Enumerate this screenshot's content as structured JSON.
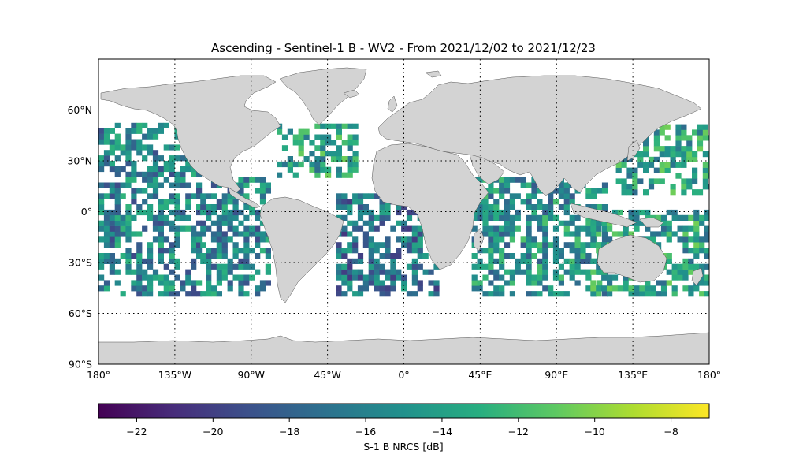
{
  "title": "Ascending - Sentinel-1 B - WV2 - From 2021/12/02 to 2021/12/23",
  "colorbar": {
    "label": "S-1 B NRCS [dB]",
    "min": -23,
    "max": -7,
    "ticks": [
      -22,
      -20,
      -18,
      -16,
      -14,
      -12,
      -10,
      -8
    ],
    "tick_labels": [
      "−22",
      "−20",
      "−18",
      "−16",
      "−14",
      "−12",
      "−10",
      "−8"
    ],
    "colormap": "viridis"
  },
  "map": {
    "projection": "PlateCarree",
    "lon_range": [
      -180,
      180
    ],
    "lat_range": [
      -90,
      90
    ],
    "land_color": "#d3d3d3",
    "ocean_color": "#ffffff",
    "gridlines": "dotted",
    "lon_ticks": [
      -180,
      -135,
      -90,
      -45,
      0,
      45,
      90,
      135,
      180
    ],
    "lon_tick_labels": [
      "180°",
      "135°W",
      "90°W",
      "45°W",
      "0°",
      "45°E",
      "90°E",
      "135°E",
      "180°"
    ],
    "lat_ticks": [
      60,
      30,
      0,
      -30,
      -60,
      -90
    ],
    "lat_tick_labels": [
      "60°N",
      "30°N",
      "0°",
      "30°S",
      "60°S",
      "90°S"
    ]
  },
  "chart_data": {
    "type": "heatmap",
    "title": "Ascending - Sentinel-1 B - WV2 - From 2021/12/02 to 2021/12/23",
    "xlabel": "",
    "ylabel": "",
    "xlim": [
      -180,
      180
    ],
    "ylim": [
      -90,
      90
    ],
    "value_label": "S-1 B NRCS [dB]",
    "value_range": [
      -23,
      -7
    ],
    "data_lat_extent": [
      -50,
      50
    ],
    "regions": [
      {
        "lon": [
          -180,
          -120
        ],
        "lat": [
          -50,
          50
        ],
        "mean_db": -16
      },
      {
        "lon": [
          -120,
          -80
        ],
        "lat": [
          -50,
          20
        ],
        "mean_db": -16
      },
      {
        "lon": [
          -75,
          -30
        ],
        "lat": [
          20,
          50
        ],
        "mean_db": -14
      },
      {
        "lon": [
          -40,
          20
        ],
        "lat": [
          -50,
          10
        ],
        "mean_db": -17
      },
      {
        "lon": [
          40,
          120
        ],
        "lat": [
          -50,
          20
        ],
        "mean_db": -15
      },
      {
        "lon": [
          125,
          180
        ],
        "lat": [
          10,
          50
        ],
        "mean_db": -14
      },
      {
        "lon": [
          110,
          180
        ],
        "lat": [
          -50,
          0
        ],
        "mean_db": -14
      }
    ]
  }
}
